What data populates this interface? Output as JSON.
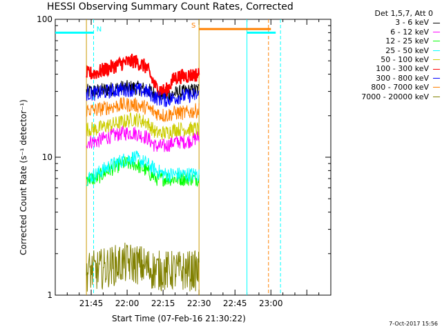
{
  "chart_data": {
    "type": "line",
    "title": "HESSI Observing Summary Count Rates, Corrected",
    "xlabel": "Start Time (07-Feb-16 21:30:22)",
    "ylabel": "Corrected Count Rate (s⁻¹ detector⁻¹)",
    "yscale": "log",
    "ylim": [
      1,
      100
    ],
    "xlim": [
      "21:30",
      "23:25"
    ],
    "x_ticks": [
      "21:45",
      "22:00",
      "22:15",
      "22:30",
      "22:45",
      "23:00"
    ],
    "y_ticks": [
      "1",
      "10",
      "100"
    ],
    "legend_title": "Det 1,5,7, Att 0",
    "legend_position": "top-right outside",
    "grid": false,
    "x": [
      "21:43",
      "21:47",
      "21:52",
      "21:58",
      "22:03",
      "22:08",
      "22:12",
      "22:16",
      "22:20",
      "22:25",
      "22:30"
    ],
    "series": [
      {
        "name": "3 - 6 keV",
        "color": "#000000",
        "values": [
          30,
          30,
          31,
          32,
          32,
          31,
          29,
          28,
          29,
          30,
          31
        ]
      },
      {
        "name": "6 - 12 keV",
        "color": "#ff00ff",
        "values": [
          13,
          13,
          14,
          15,
          15,
          14,
          12,
          12,
          13,
          13,
          14
        ]
      },
      {
        "name": "12 - 25 keV",
        "color": "#00ff00",
        "values": [
          7,
          7,
          8,
          9,
          9,
          8,
          7,
          7,
          7,
          7,
          7
        ]
      },
      {
        "name": "25 - 50 keV",
        "color": "#00ffff",
        "values": [
          7,
          7.5,
          8.5,
          9.5,
          10,
          9,
          8,
          7.5,
          7.5,
          7.5,
          7.5
        ]
      },
      {
        "name": "50 - 100 keV",
        "color": "#cccc00",
        "values": [
          16,
          16,
          17,
          18,
          19,
          18,
          15,
          15,
          16,
          16,
          16
        ]
      },
      {
        "name": "100 - 300 keV",
        "color": "#ff0000",
        "values": [
          40,
          41,
          44,
          48,
          50,
          45,
          32,
          30,
          38,
          39,
          40
        ]
      },
      {
        "name": "300 - 800 keV",
        "color": "#0000ff",
        "values": [
          29,
          29,
          30,
          31,
          31,
          30,
          27,
          26,
          27,
          28,
          28
        ]
      },
      {
        "name": "800 - 7000 keV",
        "color": "#ff8000",
        "values": [
          22,
          22,
          23,
          24,
          24,
          23,
          21,
          20,
          21,
          21,
          22
        ]
      },
      {
        "name": "7000 - 20000 keV",
        "color": "#808000",
        "values": [
          1.5,
          1.5,
          1.6,
          1.7,
          1.7,
          1.6,
          1.5,
          1.5,
          1.5,
          1.5,
          1.5
        ]
      }
    ],
    "night_markers": [
      {
        "label": "N",
        "color": "#00ffff",
        "start": "21:30",
        "end": "21:46",
        "y": 80
      },
      {
        "label": "S",
        "color": "#ff8000",
        "start": "22:30",
        "end": "23:00",
        "y": 85
      },
      {
        "label": "",
        "color": "#00ffff",
        "start": "22:50",
        "end": "23:02",
        "y": 80
      }
    ],
    "vertical_lines": [
      {
        "time": "21:43",
        "color": "#cc9900",
        "style": "solid"
      },
      {
        "time": "21:46",
        "color": "#00ffff",
        "style": "dashed"
      },
      {
        "time": "22:30",
        "color": "#cc9900",
        "style": "solid"
      },
      {
        "time": "22:50",
        "color": "#00ffff",
        "style": "solid"
      },
      {
        "time": "22:59",
        "color": "#ff8000",
        "style": "dashed"
      },
      {
        "time": "23:04",
        "color": "#00ffff",
        "style": "dashed"
      }
    ]
  },
  "legend": {
    "title": "Det 1,5,7, Att 0",
    "entries": [
      {
        "label": "3 - 6 keV",
        "color": "#000000"
      },
      {
        "label": "6 - 12 keV",
        "color": "#ff00ff"
      },
      {
        "label": "12 - 25 keV",
        "color": "#00ff00"
      },
      {
        "label": "25 - 50 keV",
        "color": "#00ffff"
      },
      {
        "label": "50 - 100 keV",
        "color": "#cccc00"
      },
      {
        "label": "100 - 300 keV",
        "color": "#ff0000"
      },
      {
        "label": "300 - 800 keV",
        "color": "#0000ff"
      },
      {
        "label": "800 - 7000 keV",
        "color": "#ff8000"
      },
      {
        "label": "7000 - 20000 keV",
        "color": "#808000"
      }
    ]
  },
  "timestamp": "7-Oct-2017 15:56"
}
